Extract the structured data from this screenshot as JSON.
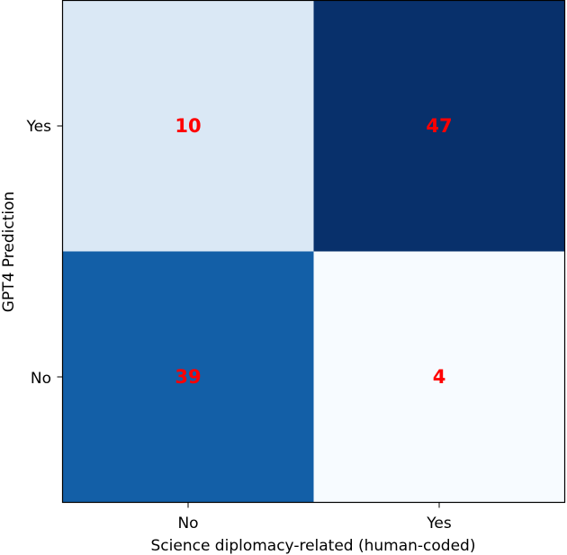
{
  "chart_data": {
    "type": "heatmap",
    "xlabel": "Science diplomacy-related (human-coded)",
    "ylabel": "GPT4 Prediction",
    "x_categories": [
      "No",
      "Yes"
    ],
    "y_categories_top_to_bottom": [
      "Yes",
      "No"
    ],
    "cells": [
      {
        "x": "No",
        "y": "Yes",
        "value": 10,
        "label": "10",
        "color": "#dae8f5"
      },
      {
        "x": "Yes",
        "y": "Yes",
        "value": 47,
        "label": "47",
        "color": "#08306b"
      },
      {
        "x": "No",
        "y": "No",
        "value": 39,
        "label": "39",
        "color": "#135fa7"
      },
      {
        "x": "Yes",
        "y": "No",
        "value": 4,
        "label": "4",
        "color": "#f7fbff"
      }
    ],
    "colormap": "Blues",
    "value_label_color": "#ff0000",
    "grid": false,
    "legend": "none"
  }
}
